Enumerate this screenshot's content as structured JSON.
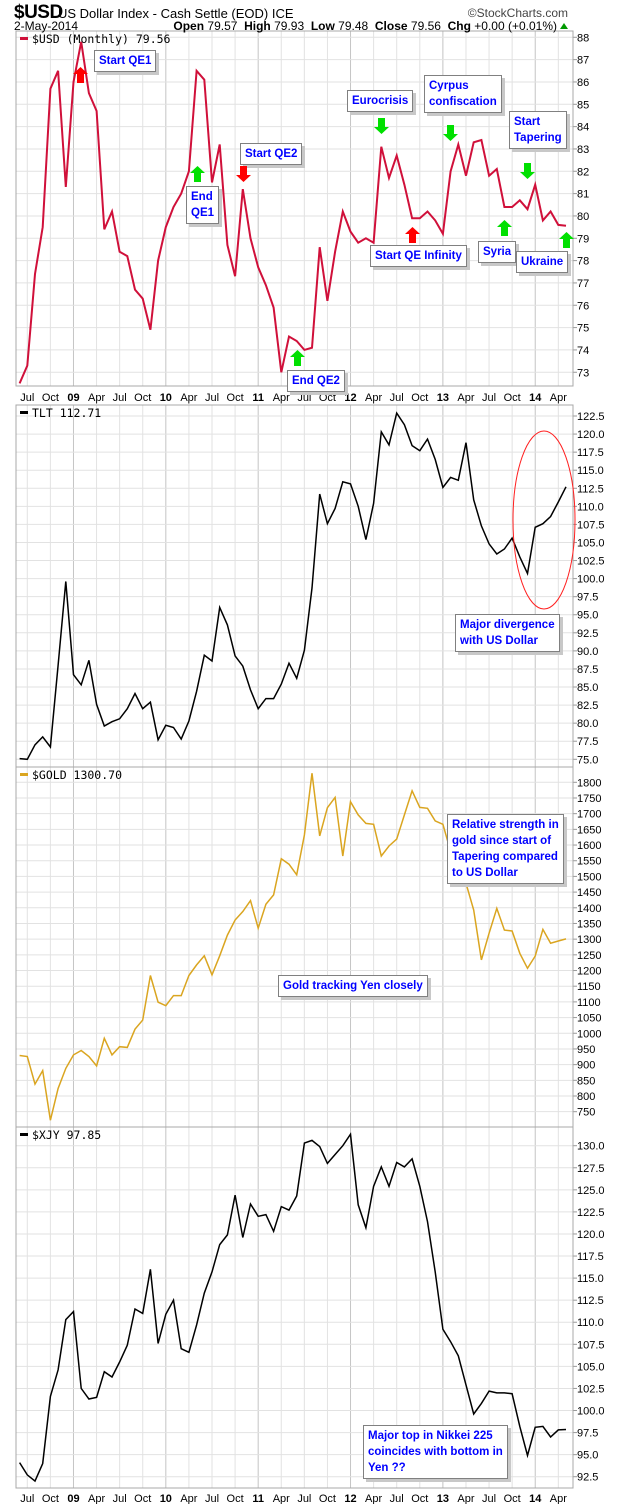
{
  "header": {
    "symbol": "$USD",
    "name": "US Dollar Index - Cash Settle (EOD)",
    "exchange": "ICE",
    "copyright": "©StockCharts.com",
    "date": "2-May-2014",
    "open_label": "Open",
    "open": "79.57",
    "high_label": "High",
    "high": "79.93",
    "low_label": "Low",
    "low": "79.48",
    "close_label": "Close",
    "close": "79.56",
    "chg_label": "Chg",
    "chg": "+0.00 (+0.01%)"
  },
  "colors": {
    "usd": "#d0103a",
    "tlt": "#000000",
    "gold": "#daa520",
    "xjy": "#000000",
    "annotation_text": "#0000ff",
    "arrow_up_green": "#00e000",
    "arrow_red": "#ff0000",
    "ellipse": "#ff2020"
  },
  "annotations": {
    "start_qe1": "Start QE1",
    "end_qe1": [
      "End",
      "QE1"
    ],
    "start_qe2": "Start QE2",
    "end_qe2": "End QE2",
    "eurocrisis": "Eurocrisis",
    "start_qe_infinity": "Start QE Infinity",
    "cyprus": [
      "Cyrpus",
      "confiscation"
    ],
    "start_tapering": [
      "Start",
      "Tapering"
    ],
    "syria": "Syria",
    "ukraine": "Ukraine",
    "divergence": [
      "Major divergence",
      "with US Dollar"
    ],
    "relative_strength": [
      "Relative strength in",
      "gold since start of",
      "Tapering compared",
      "to US Dollar"
    ],
    "gold_tracking": "Gold tracking Yen closely",
    "nikkei": [
      "Major top in Nikkei 225",
      "coincides with bottom in",
      "Yen ??"
    ]
  },
  "chart_data": [
    {
      "type": "line",
      "id": "usd",
      "title": "$USD (Monthly) 79.56",
      "frequency": "monthly",
      "x_start": "Jun 2008",
      "x_end": "May 2014",
      "x_tick_labels": [
        "Jul",
        "Oct",
        "09",
        "Apr",
        "Jul",
        "Oct",
        "10",
        "Apr",
        "Jul",
        "Oct",
        "11",
        "Apr",
        "Jul",
        "Oct",
        "12",
        "Apr",
        "Jul",
        "Oct",
        "13",
        "Apr",
        "Jul",
        "Oct",
        "14",
        "Apr"
      ],
      "ylim": [
        73,
        88
      ],
      "ytick_step": 1,
      "grid": true,
      "values": [
        72.5,
        73.3,
        77.4,
        79.5,
        85.7,
        86.5,
        81.3,
        86.0,
        87.8,
        85.5,
        84.7,
        79.4,
        80.2,
        78.4,
        78.2,
        76.7,
        76.3,
        74.9,
        78.0,
        79.5,
        80.4,
        81.0,
        82.0,
        86.5,
        86.1,
        81.5,
        83.2,
        78.7,
        77.3,
        81.2,
        79.0,
        77.7,
        76.9,
        75.9,
        73.0,
        74.6,
        74.4,
        74.0,
        74.1,
        78.6,
        76.2,
        78.4,
        80.2,
        79.3,
        78.8,
        79.0,
        78.8,
        83.1,
        81.7,
        82.7,
        81.4,
        79.9,
        79.9,
        80.2,
        79.8,
        79.2,
        82.0,
        83.2,
        81.8,
        83.3,
        83.4,
        81.8,
        82.1,
        80.4,
        80.4,
        80.7,
        80.3,
        81.4,
        79.8,
        80.2,
        79.6,
        79.56
      ]
    },
    {
      "type": "line",
      "id": "tlt",
      "title": "TLT 112.71",
      "ylim": [
        75,
        122.5
      ],
      "ytick_step": 2.5,
      "grid": true,
      "values": [
        75.1,
        75.0,
        77.0,
        78.1,
        76.7,
        88.0,
        99.6,
        86.7,
        85.3,
        88.7,
        82.6,
        79.6,
        80.2,
        80.6,
        82.0,
        84.1,
        82.0,
        82.9,
        77.7,
        79.7,
        79.4,
        77.8,
        80.3,
        84.4,
        89.4,
        88.6,
        96.0,
        93.6,
        89.3,
        87.9,
        84.6,
        82.0,
        83.4,
        83.4,
        85.4,
        88.3,
        86.2,
        90.1,
        98.7,
        111.7,
        107.6,
        109.7,
        113.4,
        113.1,
        110.0,
        105.4,
        110.4,
        120.3,
        118.5,
        122.9,
        121.3,
        118.4,
        117.7,
        119.3,
        116.5,
        112.6,
        114.0,
        113.6,
        118.8,
        110.9,
        107.3,
        104.8,
        103.4,
        104.1,
        105.6,
        103.0,
        100.7,
        107.1,
        107.6,
        108.6,
        110.6,
        112.71
      ]
    },
    {
      "type": "line",
      "id": "gold",
      "title": "$GOLD 1300.70",
      "ylim": [
        750,
        1800
      ],
      "ytick_step": 50,
      "grid": true,
      "values": [
        929,
        926,
        838,
        881,
        723,
        824,
        888,
        931,
        945,
        926,
        896,
        984,
        931,
        957,
        955,
        1013,
        1042,
        1184,
        1099,
        1088,
        1120,
        1120,
        1184,
        1218,
        1247,
        1186,
        1247,
        1313,
        1361,
        1388,
        1423,
        1335,
        1411,
        1441,
        1556,
        1539,
        1505,
        1632,
        1829,
        1629,
        1719,
        1752,
        1565,
        1738,
        1696,
        1669,
        1666,
        1565,
        1597,
        1619,
        1696,
        1773,
        1720,
        1717,
        1677,
        1666,
        1580,
        1595,
        1478,
        1393,
        1234,
        1319,
        1398,
        1329,
        1326,
        1255,
        1207,
        1246,
        1331,
        1287,
        1294,
        1300.7
      ]
    },
    {
      "type": "line",
      "id": "xjy",
      "title": "$XJY 97.85",
      "ylim": [
        92.5,
        130
      ],
      "ytick_step": 2.5,
      "grid": true,
      "values": [
        94.1,
        92.7,
        92.0,
        94.0,
        101.6,
        104.6,
        110.3,
        111.2,
        102.5,
        101.3,
        101.5,
        104.4,
        103.8,
        105.5,
        107.4,
        111.5,
        111.0,
        116.0,
        107.6,
        110.9,
        112.5,
        107.0,
        106.6,
        109.7,
        113.3,
        115.7,
        118.8,
        119.9,
        124.4,
        119.6,
        123.4,
        122.0,
        122.2,
        120.3,
        123.1,
        122.7,
        124.3,
        130.3,
        130.6,
        129.9,
        128.0,
        129.0,
        130.0,
        131.3,
        123.3,
        120.7,
        125.4,
        127.6,
        125.4,
        128.1,
        127.6,
        128.5,
        125.4,
        121.4,
        115.7,
        109.2,
        107.8,
        106.2,
        102.9,
        99.6,
        100.8,
        102.2,
        102.0,
        102.0,
        101.9,
        98.2,
        94.9,
        98.1,
        98.2,
        97.0,
        97.8,
        97.85
      ]
    }
  ]
}
